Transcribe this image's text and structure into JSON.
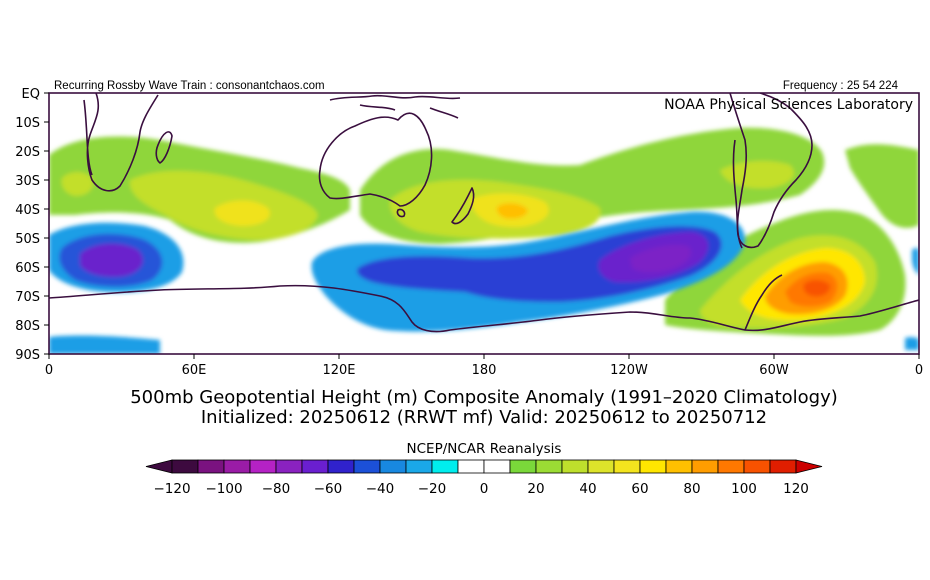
{
  "header": {
    "left_text": "Recurring Rossby Wave Train : consonantchaos.com",
    "right_text": "Frequency : 25 54 224",
    "lab_label": "NOAA Physical Sciences Laboratory"
  },
  "map": {
    "lat_labels": [
      "EQ",
      "10S",
      "20S",
      "30S",
      "40S",
      "50S",
      "60S",
      "70S",
      "80S",
      "90S"
    ],
    "lon_labels": [
      "0",
      "60E",
      "120E",
      "180",
      "120W",
      "60W",
      "0"
    ]
  },
  "titles": {
    "line1": "500mb Geopotential Height (m) Composite Anomaly (1991–2020 Climatology)",
    "line2": "Initialized: 20250612 (RRWT mf) Valid: 20250612 to 20250712"
  },
  "colorbar": {
    "label": "NCEP/NCAR Reanalysis",
    "ticks": [
      "−120",
      "−100",
      "−80",
      "−60",
      "−40",
      "−20",
      "0",
      "20",
      "40",
      "60",
      "80",
      "100",
      "120"
    ],
    "colors": [
      "#3d0a3f",
      "#7a1280",
      "#9a1ca6",
      "#b522c5",
      "#8a22c0",
      "#6a1fd0",
      "#3022cc",
      "#1c50d8",
      "#1888e0",
      "#1aa8e8",
      "#00eeee",
      "#ffffff",
      "#ffffff",
      "#7ad83a",
      "#9bdc34",
      "#bedf2c",
      "#dde32a",
      "#f3e41e",
      "#ffe600",
      "#ffc000",
      "#ff9d00",
      "#ff7800",
      "#f85200",
      "#e01e00"
    ],
    "under_color": "#3d0a3f",
    "over_color": "#cc0000"
  }
}
